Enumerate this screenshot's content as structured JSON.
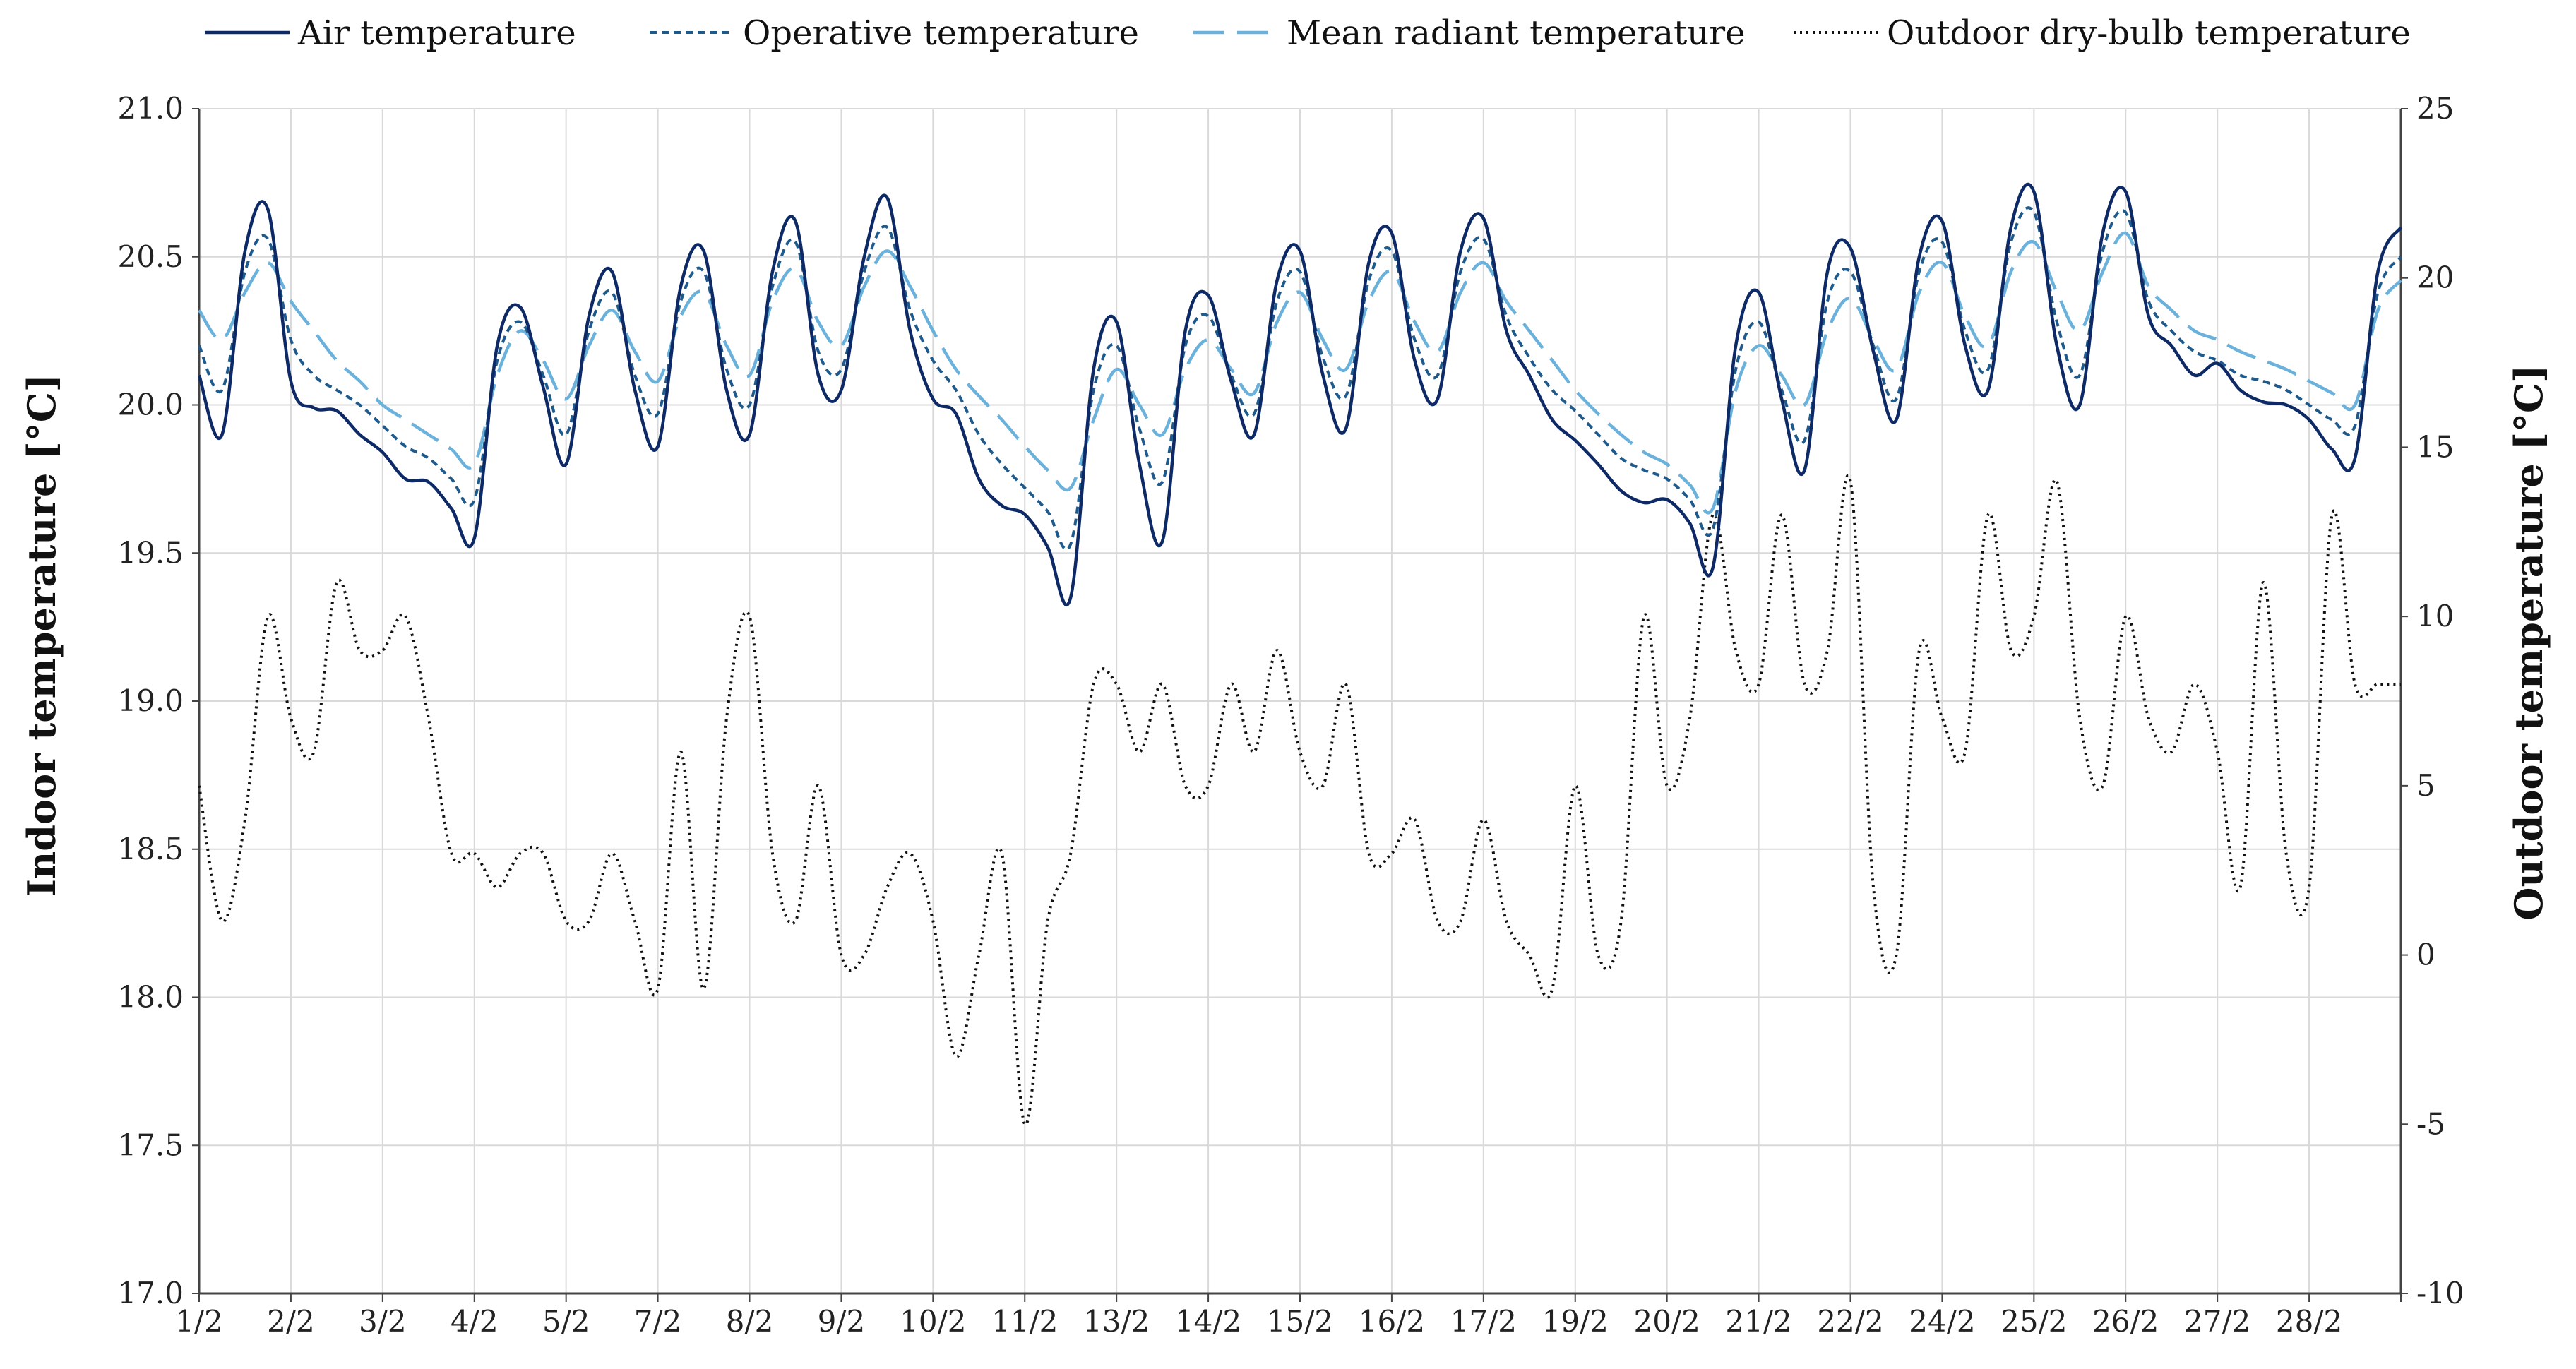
{
  "chart_data": {
    "type": "line",
    "title": "",
    "x": [
      0,
      0.25,
      0.5,
      0.75,
      1,
      1.25,
      1.5,
      1.75,
      2,
      2.25,
      2.5,
      2.75,
      3,
      3.25,
      3.5,
      3.75,
      4,
      4.25,
      4.5,
      4.75,
      5,
      5.25,
      5.5,
      5.75,
      6,
      6.25,
      6.5,
      6.75,
      7,
      7.25,
      7.5,
      7.75,
      8,
      8.25,
      8.5,
      8.75,
      9,
      9.25,
      9.5,
      9.75,
      10,
      10.25,
      10.5,
      10.75,
      11,
      11.25,
      11.5,
      11.75,
      12,
      12.25,
      12.5,
      12.75,
      13,
      13.25,
      13.5,
      13.75,
      14,
      14.25,
      14.5,
      14.75,
      15,
      15.25,
      15.5,
      15.75,
      16,
      16.25,
      16.5,
      16.75,
      17,
      17.25,
      17.5,
      17.75,
      18,
      18.25,
      18.5,
      18.75,
      19,
      19.25,
      19.5,
      19.75,
      20,
      20.25,
      20.5,
      20.75,
      21,
      21.25,
      21.5,
      21.75,
      22,
      22.25,
      22.5,
      22.75,
      23,
      23.25,
      23.5,
      23.75,
      24
    ],
    "x_tick_labels": [
      "1/2",
      "2/2",
      "3/2",
      "4/2",
      "5/2",
      "7/2",
      "8/2",
      "9/2",
      "10/2",
      "11/2",
      "13/2",
      "14/2",
      "15/2",
      "16/2",
      "17/2",
      "19/2",
      "20/2",
      "21/2",
      "22/2",
      "24/2",
      "25/2",
      "26/2",
      "27/2",
      "28/2"
    ],
    "xlim": [
      0,
      24
    ],
    "xlabel": "",
    "y_left": {
      "label": "Indoor temperature [°C]",
      "lim": [
        17.0,
        21.0
      ],
      "ticks": [
        "17.0",
        "17.5",
        "18.0",
        "18.5",
        "19.0",
        "19.5",
        "20.0",
        "20.5",
        "21.0"
      ]
    },
    "y_right": {
      "label": "Outdoor temperature [°C]",
      "lim": [
        -10,
        25
      ],
      "ticks": [
        "-10",
        "-5",
        "0",
        "5",
        "10",
        "15",
        "20",
        "25"
      ]
    },
    "grid": true,
    "legend_position": "top",
    "series": [
      {
        "name": "Air temperature",
        "axis": "left",
        "color": "#0d2a66",
        "style": "solid",
        "values": [
          20.1,
          19.9,
          20.52,
          20.66,
          20.08,
          19.99,
          19.98,
          19.9,
          19.84,
          19.75,
          19.74,
          19.65,
          19.55,
          20.2,
          20.33,
          20.06,
          19.8,
          20.3,
          20.45,
          20.05,
          19.86,
          20.4,
          20.52,
          20.05,
          19.9,
          20.45,
          20.62,
          20.1,
          20.05,
          20.5,
          20.7,
          20.25,
          20.02,
          19.97,
          19.75,
          19.66,
          19.63,
          19.52,
          19.35,
          20.12,
          20.28,
          19.8,
          19.54,
          20.25,
          20.37,
          20.08,
          19.9,
          20.42,
          20.52,
          20.1,
          19.92,
          20.48,
          20.58,
          20.15,
          20.02,
          20.52,
          20.63,
          20.25,
          20.1,
          19.95,
          19.88,
          19.8,
          19.71,
          19.67,
          19.68,
          19.6,
          19.45,
          20.2,
          20.38,
          20.02,
          19.78,
          20.45,
          20.53,
          20.18,
          19.95,
          20.5,
          20.62,
          20.2,
          20.05,
          20.6,
          20.72,
          20.2,
          20.0,
          20.58,
          20.72,
          20.3,
          20.2,
          20.1,
          20.14,
          20.05,
          20.01,
          20.0,
          19.95,
          19.85,
          19.82,
          20.45,
          20.6
        ],
        "extra_values": []
      },
      {
        "name": "Operative temperature",
        "axis": "left",
        "color": "#1f5a8c",
        "style": "short-dash",
        "values": [
          20.2,
          20.05,
          20.45,
          20.56,
          20.22,
          20.1,
          20.05,
          20.0,
          19.93,
          19.86,
          19.82,
          19.75,
          19.68,
          20.15,
          20.28,
          20.1,
          19.9,
          20.25,
          20.38,
          20.1,
          19.97,
          20.35,
          20.45,
          20.12,
          20.0,
          20.4,
          20.55,
          20.18,
          20.12,
          20.45,
          20.6,
          20.32,
          20.15,
          20.05,
          19.9,
          19.8,
          19.72,
          19.64,
          19.53,
          20.05,
          20.2,
          19.92,
          19.74,
          20.2,
          20.3,
          20.1,
          19.97,
          20.35,
          20.45,
          20.16,
          20.03,
          20.42,
          20.52,
          20.22,
          20.1,
          20.45,
          20.56,
          20.3,
          20.16,
          20.05,
          19.98,
          19.9,
          19.82,
          19.78,
          19.75,
          19.68,
          19.58,
          20.12,
          20.28,
          20.05,
          19.88,
          20.35,
          20.45,
          20.2,
          20.02,
          20.45,
          20.55,
          20.25,
          20.12,
          20.55,
          20.65,
          20.28,
          20.1,
          20.52,
          20.65,
          20.35,
          20.25,
          20.18,
          20.15,
          20.1,
          20.08,
          20.05,
          20.0,
          19.95,
          19.93,
          20.38,
          20.5
        ],
        "extra_values": []
      },
      {
        "name": "Mean radiant temperature",
        "axis": "left",
        "color": "#6ab1dc",
        "style": "long-dash",
        "values": [
          20.32,
          20.22,
          20.38,
          20.48,
          20.35,
          20.25,
          20.15,
          20.08,
          20.0,
          19.95,
          19.9,
          19.85,
          19.8,
          20.1,
          20.25,
          20.15,
          20.02,
          20.2,
          20.32,
          20.18,
          20.08,
          20.3,
          20.38,
          20.2,
          20.1,
          20.35,
          20.46,
          20.28,
          20.2,
          20.4,
          20.52,
          20.4,
          20.25,
          20.12,
          20.03,
          19.95,
          19.86,
          19.78,
          19.72,
          19.95,
          20.12,
          20.0,
          19.9,
          20.12,
          20.22,
          20.12,
          20.04,
          20.28,
          20.38,
          20.22,
          20.12,
          20.35,
          20.45,
          20.28,
          20.18,
          20.38,
          20.48,
          20.35,
          20.25,
          20.15,
          20.05,
          19.97,
          19.9,
          19.84,
          19.8,
          19.73,
          19.65,
          20.05,
          20.2,
          20.1,
          20.0,
          20.25,
          20.36,
          20.22,
          20.12,
          20.38,
          20.48,
          20.3,
          20.2,
          20.45,
          20.55,
          20.38,
          20.25,
          20.45,
          20.58,
          20.4,
          20.32,
          20.25,
          20.22,
          20.18,
          20.15,
          20.12,
          20.08,
          20.04,
          20.0,
          20.32,
          20.42
        ],
        "extra_values": []
      },
      {
        "name": "Outdoor dry-bulb temperature",
        "axis": "right",
        "color": "#111111",
        "style": "dotted",
        "values": [
          5,
          1,
          4,
          10,
          7,
          6,
          11,
          9,
          9,
          10,
          7,
          3,
          3,
          2,
          3,
          3,
          1,
          1,
          3,
          1,
          -1,
          6,
          -1,
          7,
          10,
          3,
          1,
          5,
          0,
          0,
          2,
          3,
          1,
          -3,
          0,
          3,
          -5,
          1,
          3,
          8,
          8,
          6,
          8,
          5,
          5,
          8,
          6,
          9,
          6,
          5,
          8,
          3,
          3,
          4,
          1,
          1,
          4,
          1,
          0,
          -1,
          5,
          0,
          1,
          10,
          5,
          7,
          13,
          9,
          8,
          13,
          8,
          9,
          14,
          2,
          0,
          9,
          7,
          6,
          13,
          9,
          10,
          14,
          7,
          5,
          10,
          7,
          6,
          8,
          6,
          2,
          11,
          3,
          2,
          13,
          8,
          8,
          8
        ],
        "extra_values": []
      }
    ]
  }
}
